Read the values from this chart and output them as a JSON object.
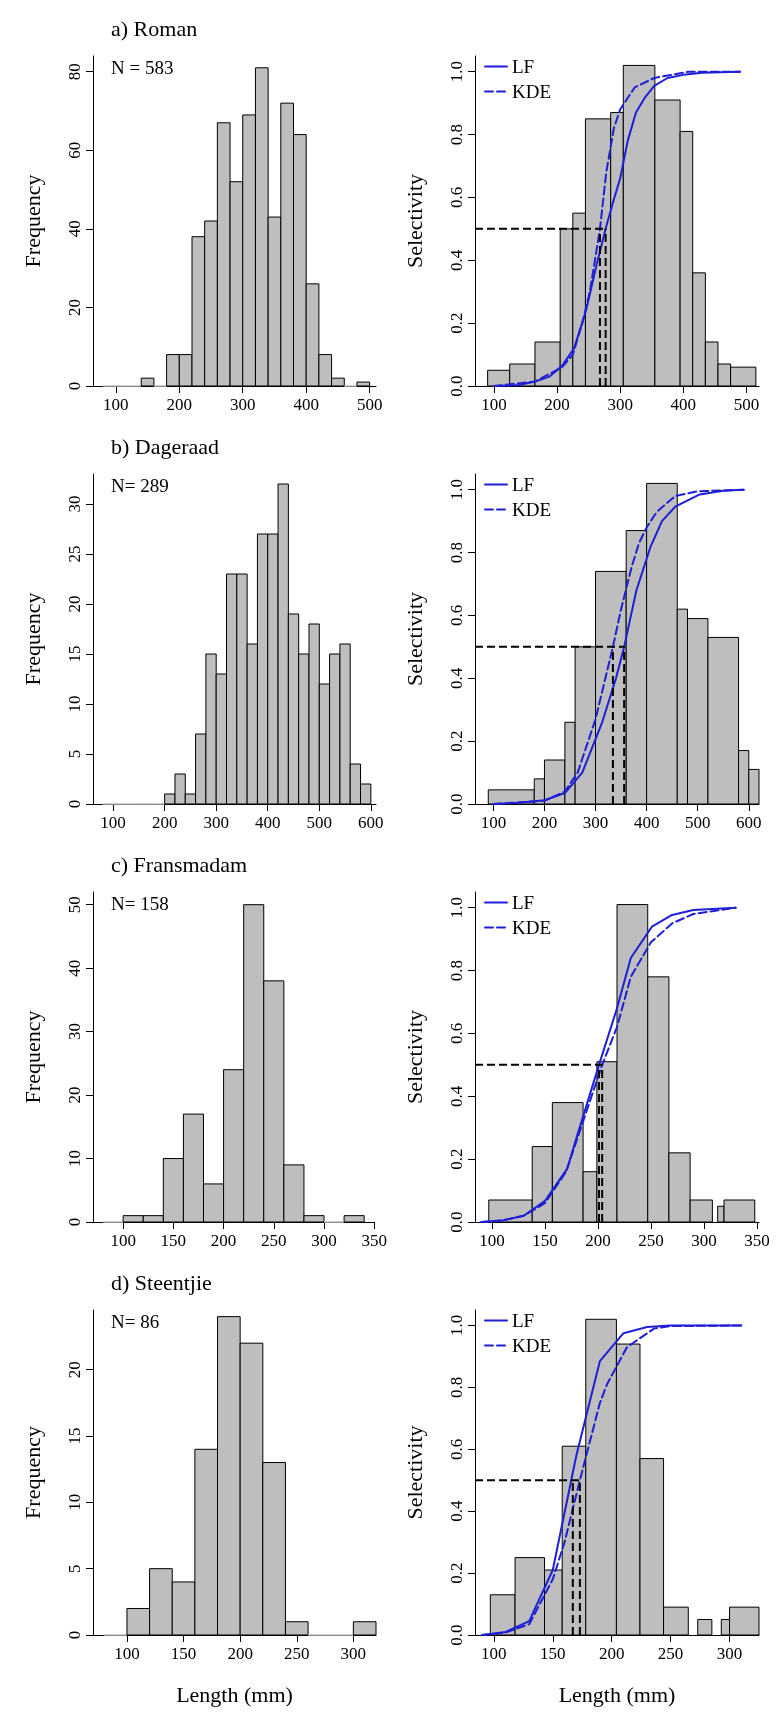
{
  "chart_data": [
    {
      "type": "histogram",
      "title": "a) Roman",
      "ylabel": "Frequency",
      "annotations": [
        "N = 583"
      ],
      "color": "#bebebe",
      "bins": [
        80,
        100,
        120,
        140,
        160,
        180,
        200,
        220,
        240,
        260,
        280,
        300,
        320,
        340,
        360,
        380,
        400,
        420,
        440,
        460,
        480,
        500
      ],
      "values": [
        0,
        0,
        0,
        2,
        0,
        8,
        8,
        38,
        42,
        67,
        52,
        69,
        81,
        43,
        72,
        64,
        26,
        8,
        2,
        0,
        1
      ],
      "xlim": [
        64,
        510
      ],
      "ylim": [
        0,
        84
      ],
      "xticks": [
        100,
        200,
        300,
        400,
        500
      ],
      "yticks": [
        0,
        20,
        40,
        60,
        80
      ]
    },
    {
      "type": "histogram",
      "ylabel": "Selectivity",
      "color": "#bebebe",
      "bins": [
        90,
        125,
        165,
        205,
        225,
        245,
        285,
        305,
        355,
        395,
        415,
        435,
        455,
        475,
        515
      ],
      "values": [
        0.05,
        0.07,
        0.14,
        0.5,
        0.55,
        0.85,
        0.87,
        1.02,
        0.91,
        0.81,
        0.36,
        0.14,
        0.07,
        0.06
      ],
      "series": [
        {
          "name": "LF",
          "type": "line",
          "color": "#1f1fd6",
          "line_style": "solid",
          "x": [
            100,
            140,
            165,
            188,
            208,
            227,
            246,
            262,
            277,
            288,
            300,
            312,
            325,
            340,
            354,
            375,
            400,
            430,
            490
          ],
          "values": [
            0,
            0.003,
            0.014,
            0.03,
            0.064,
            0.12,
            0.24,
            0.38,
            0.5,
            0.58,
            0.66,
            0.78,
            0.87,
            0.92,
            0.955,
            0.98,
            0.99,
            0.997,
            1
          ]
        },
        {
          "name": "KDE",
          "type": "line",
          "color": "#1f1fd6",
          "line_style": "dashed",
          "x": [
            100,
            165,
            208,
            225,
            240,
            252,
            268,
            278,
            290,
            300,
            323,
            354,
            408,
            490
          ],
          "values": [
            0,
            0.014,
            0.06,
            0.1,
            0.2,
            0.3,
            0.5,
            0.68,
            0.82,
            0.88,
            0.95,
            0.98,
            1,
            1
          ]
        }
      ],
      "ref_lines": [
        {
          "axis": "y",
          "value": 0.5,
          "color": "#000000",
          "line_style": "dashed"
        },
        {
          "axis": "x",
          "value": 268,
          "color": "#000000",
          "line_style": "dashed"
        },
        {
          "axis": "x",
          "value": 277,
          "color": "#000000",
          "line_style": "dashed"
        }
      ],
      "legend": "top left",
      "xlim": [
        70,
        520
      ],
      "ylim": [
        0,
        1.05
      ],
      "xticks": [
        100,
        200,
        300,
        400,
        500
      ],
      "yticks": [
        {
          "value": 0,
          "label": "0.0"
        },
        {
          "value": 0.2,
          "label": "0.2"
        },
        {
          "value": 0.4,
          "label": "0.4"
        },
        {
          "value": 0.6,
          "label": "0.6"
        },
        {
          "value": 0.8,
          "label": "0.8"
        },
        {
          "value": 1,
          "label": "1.0"
        }
      ]
    },
    {
      "type": "histogram",
      "title": "b) Dageraad",
      "ylabel": "Frequency",
      "annotations": [
        "N= 289"
      ],
      "color": "#bebebe",
      "bins": [
        80,
        100,
        120,
        140,
        160,
        180,
        200,
        220,
        240,
        260,
        280,
        300,
        320,
        340,
        360,
        380,
        400,
        420,
        440,
        460,
        480,
        500,
        520,
        540,
        560,
        580,
        600
      ],
      "values": [
        0,
        0,
        0,
        0,
        0,
        0,
        1,
        3,
        1,
        7,
        15,
        13,
        23,
        23,
        16,
        27,
        27,
        32,
        19,
        15,
        18,
        12,
        15,
        16,
        4,
        2
      ],
      "xlim": [
        61,
        610
      ],
      "ylim": [
        0,
        33
      ],
      "xticks": [
        100,
        200,
        300,
        400,
        500,
        600
      ],
      "yticks": [
        0,
        5,
        10,
        15,
        20,
        25,
        30
      ]
    },
    {
      "type": "histogram",
      "ylabel": "Selectivity",
      "color": "#bebebe",
      "bins": [
        90,
        180,
        200,
        240,
        260,
        300,
        360,
        400,
        460,
        480,
        520,
        580,
        600,
        620
      ],
      "values": [
        0.045,
        0.08,
        0.14,
        0.26,
        0.5,
        0.74,
        0.87,
        1.02,
        0.62,
        0.59,
        0.53,
        0.17,
        0.11
      ],
      "series": [
        {
          "name": "LF",
          "type": "line",
          "color": "#1f1fd6",
          "line_style": "solid",
          "x": [
            100,
            150,
            200,
            240,
            274,
            313,
            340,
            356,
            380,
            408,
            430,
            456,
            504,
            550,
            590
          ],
          "values": [
            0,
            0.004,
            0.012,
            0.035,
            0.1,
            0.26,
            0.4,
            0.5,
            0.68,
            0.82,
            0.9,
            0.946,
            0.985,
            0.997,
            1
          ]
        },
        {
          "name": "KDE",
          "type": "line",
          "color": "#1f1fd6",
          "line_style": "dashed",
          "x": [
            100,
            200,
            240,
            265,
            300,
            334,
            350,
            370,
            385,
            400,
            420,
            456,
            500,
            590
          ],
          "values": [
            0,
            0.01,
            0.04,
            0.1,
            0.27,
            0.5,
            0.62,
            0.75,
            0.83,
            0.88,
            0.93,
            0.98,
            0.995,
            1
          ]
        }
      ],
      "ref_lines": [
        {
          "axis": "y",
          "value": 0.5,
          "color": "#000000",
          "line_style": "dashed"
        },
        {
          "axis": "x",
          "value": 334,
          "color": "#000000",
          "line_style": "dashed"
        },
        {
          "axis": "x",
          "value": 356,
          "color": "#000000",
          "line_style": "dashed"
        }
      ],
      "legend": "top left",
      "xlim": [
        64,
        620
      ],
      "ylim": [
        0,
        1.05
      ],
      "xticks": [
        100,
        200,
        300,
        400,
        500,
        600
      ],
      "yticks": [
        {
          "value": 0,
          "label": "0.0"
        },
        {
          "value": 0.2,
          "label": "0.2"
        },
        {
          "value": 0.4,
          "label": "0.4"
        },
        {
          "value": 0.6,
          "label": "0.6"
        },
        {
          "value": 0.8,
          "label": "0.8"
        },
        {
          "value": 1,
          "label": "1.0"
        }
      ]
    },
    {
      "type": "histogram",
      "title": "c) Fransmadam",
      "ylabel": "Frequency",
      "annotations": [
        "N= 158"
      ],
      "color": "#bebebe",
      "bins": [
        80,
        100,
        120,
        140,
        160,
        180,
        200,
        220,
        240,
        260,
        280,
        300,
        320,
        340
      ],
      "values": [
        0,
        1,
        1,
        10,
        17,
        6,
        24,
        50,
        38,
        9,
        1,
        0,
        1
      ],
      "xlim": [
        70,
        350
      ],
      "ylim": [
        0,
        52
      ],
      "xticks": [
        100,
        150,
        200,
        250,
        300,
        350
      ],
      "yticks": [
        0,
        10,
        20,
        30,
        40,
        50
      ]
    },
    {
      "type": "histogram",
      "ylabel": "Selectivity",
      "color": "#bebebe",
      "bins": [
        97,
        138,
        157,
        186,
        199,
        218,
        247,
        267,
        287,
        308,
        313,
        319,
        348
      ],
      "values": [
        0.07,
        0.24,
        0.38,
        0.16,
        0.51,
        1.01,
        0.78,
        0.22,
        0.07,
        null,
        0.05,
        0.07
      ],
      "series": [
        {
          "name": "LF",
          "type": "line",
          "color": "#1f1fd6",
          "line_style": "solid",
          "x": [
            90,
            110,
            130,
            150,
            171,
            180,
            201,
            218,
            231,
            251,
            270,
            290,
            330
          ],
          "values": [
            0,
            0.005,
            0.02,
            0.067,
            0.17,
            0.27,
            0.5,
            0.68,
            0.84,
            0.94,
            0.977,
            0.993,
            1
          ]
        },
        {
          "name": "KDE",
          "type": "line",
          "color": "#1f1fd6",
          "line_style": "dashed",
          "x": [
            90,
            110,
            130,
            150,
            170,
            190,
            204,
            218,
            231,
            250,
            270,
            290,
            330
          ],
          "values": [
            0,
            0.005,
            0.02,
            0.06,
            0.16,
            0.36,
            0.5,
            0.62,
            0.78,
            0.89,
            0.95,
            0.98,
            1
          ]
        }
      ],
      "ref_lines": [
        {
          "axis": "y",
          "value": 0.5,
          "color": "#000000",
          "line_style": "dashed"
        },
        {
          "axis": "x",
          "value": 201,
          "color": "#000000",
          "line_style": "dashed"
        },
        {
          "axis": "x",
          "value": 204,
          "color": "#000000",
          "line_style": "dashed"
        }
      ],
      "legend": "top left",
      "xlim": [
        84,
        352
      ],
      "ylim": [
        0,
        1.05
      ],
      "xticks": [
        100,
        150,
        200,
        250,
        300,
        350
      ],
      "yticks": [
        {
          "value": 0,
          "label": "0.0"
        },
        {
          "value": 0.2,
          "label": "0.2"
        },
        {
          "value": 0.4,
          "label": "0.4"
        },
        {
          "value": 0.6,
          "label": "0.6"
        },
        {
          "value": 0.8,
          "label": "0.8"
        },
        {
          "value": 1,
          "label": "1.0"
        }
      ]
    },
    {
      "type": "histogram",
      "title": "d) Steentjie",
      "ylabel": "Frequency",
      "xlabel": "Length (mm)",
      "annotations": [
        "N= 86"
      ],
      "color": "#bebebe",
      "bins": [
        80,
        100,
        120,
        140,
        160,
        180,
        200,
        220,
        240,
        260,
        280,
        300,
        320
      ],
      "values": [
        0,
        2,
        5,
        4,
        14,
        24,
        22,
        13,
        1,
        0,
        0,
        1
      ],
      "xlim": [
        70,
        320
      ],
      "ylim": [
        0,
        24.5
      ],
      "xticks": [
        100,
        150,
        200,
        250,
        300
      ],
      "yticks": [
        0,
        5,
        10,
        15,
        20
      ]
    },
    {
      "type": "histogram",
      "ylabel": "Selectivity",
      "xlabel": "Length (mm)",
      "color": "#bebebe",
      "bins": [
        97,
        118,
        143,
        158,
        178,
        204,
        224,
        244,
        265,
        273,
        285,
        293,
        300,
        325
      ],
      "values": [
        0.13,
        0.25,
        0.21,
        0.61,
        1.02,
        0.94,
        0.57,
        0.09,
        null,
        0.05,
        null,
        0.05,
        0.09
      ],
      "series": [
        {
          "name": "LF",
          "type": "line",
          "color": "#1f1fd6",
          "line_style": "solid",
          "x": [
            90,
            110,
            130,
            150,
            170,
            190,
            210,
            230,
            250,
            310
          ],
          "values": [
            0,
            0.01,
            0.045,
            0.21,
            0.58,
            0.885,
            0.975,
            0.995,
            1,
            1
          ]
        },
        {
          "name": "KDE",
          "type": "line",
          "color": "#1f1fd6",
          "line_style": "dashed",
          "x": [
            90,
            110,
            130,
            150,
            160,
            173,
            190,
            196,
            213,
            236,
            250,
            310
          ],
          "values": [
            0,
            0.008,
            0.035,
            0.18,
            0.3,
            0.5,
            0.75,
            0.81,
            0.93,
            0.99,
            0.998,
            1
          ]
        }
      ],
      "ref_lines": [
        {
          "axis": "y",
          "value": 0.5,
          "color": "#000000",
          "line_style": "dashed"
        },
        {
          "axis": "x",
          "value": 167,
          "color": "#000000",
          "line_style": "dashed"
        },
        {
          "axis": "x",
          "value": 173,
          "color": "#000000",
          "line_style": "dashed"
        }
      ],
      "legend": "top left",
      "xlim": [
        84,
        325
      ],
      "ylim": [
        0,
        1.05
      ],
      "xticks": [
        100,
        150,
        200,
        250,
        300
      ],
      "yticks": [
        {
          "value": 0,
          "label": "0.0"
        },
        {
          "value": 0.2,
          "label": "0.2"
        },
        {
          "value": 0.4,
          "label": "0.4"
        },
        {
          "value": 0.6,
          "label": "0.6"
        },
        {
          "value": 0.8,
          "label": "0.8"
        },
        {
          "value": 1,
          "label": "1.0"
        }
      ]
    }
  ]
}
